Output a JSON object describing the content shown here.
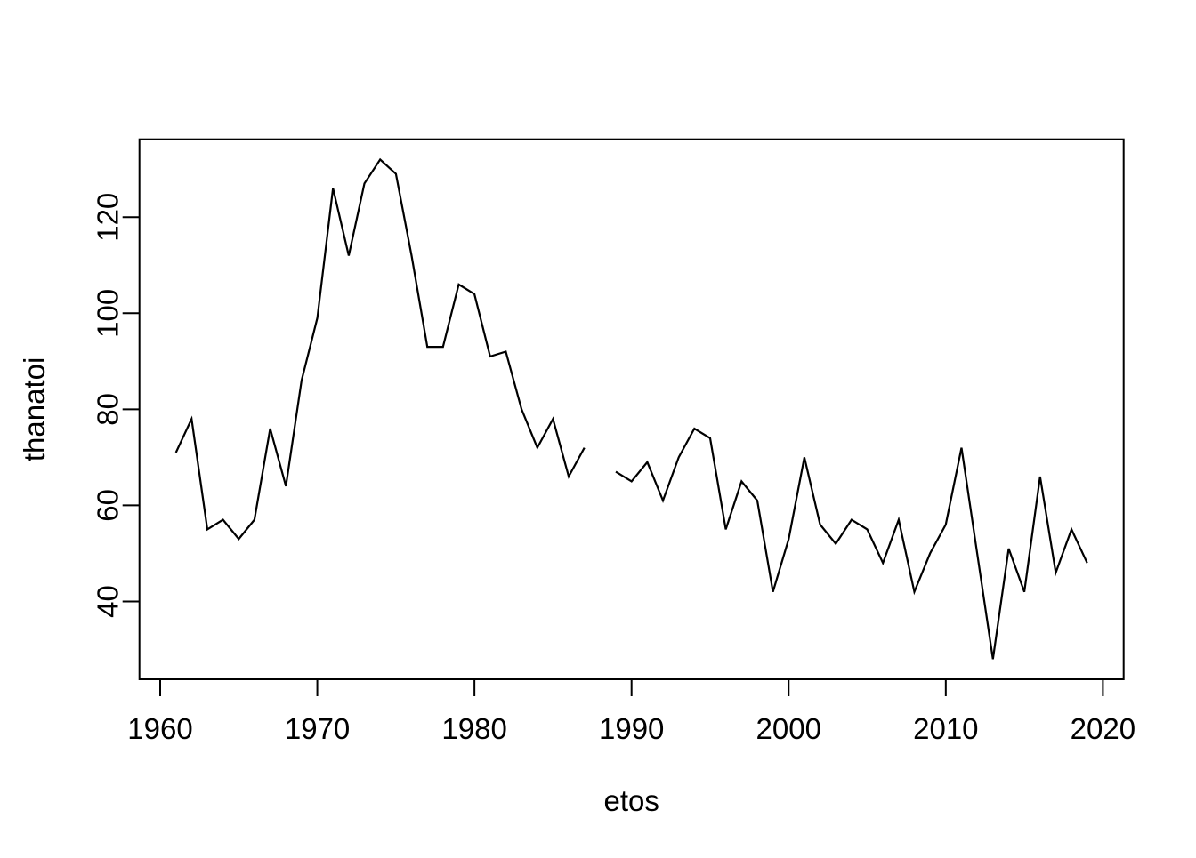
{
  "chart_data": {
    "type": "line",
    "title": "",
    "xlabel": "etos",
    "ylabel": "thanatoi",
    "grid": false,
    "legend": null,
    "background_color": "#ffffff",
    "line_color": "#000000",
    "axis_color": "#000000",
    "xlim": [
      1958.68,
      2021.32
    ],
    "ylim": [
      23.8,
      136.2
    ],
    "xticks": [
      1960,
      1970,
      1980,
      1990,
      2000,
      2010,
      2020
    ],
    "yticks": [
      40,
      60,
      80,
      100,
      120
    ],
    "series": [
      {
        "name": "thanatoi",
        "x": [
          1961,
          1962,
          1963,
          1964,
          1965,
          1966,
          1967,
          1968,
          1969,
          1970,
          1971,
          1972,
          1973,
          1974,
          1975,
          1976,
          1977,
          1978,
          1979,
          1980,
          1981,
          1982,
          1983,
          1984,
          1985,
          1986,
          1987,
          1988,
          1989,
          1990,
          1991,
          1992,
          1993,
          1994,
          1995,
          1996,
          1997,
          1998,
          1999,
          2000,
          2001,
          2002,
          2003,
          2004,
          2005,
          2006,
          2007,
          2008,
          2009,
          2010,
          2011,
          2012,
          2013,
          2014,
          2015,
          2016,
          2017,
          2018,
          2019
        ],
        "y": [
          71,
          78,
          55,
          57,
          53,
          57,
          76,
          64,
          86,
          99,
          126,
          112,
          127,
          132,
          129,
          112,
          93,
          93,
          106,
          104,
          91,
          92,
          80,
          72,
          78,
          66,
          72,
          null,
          67,
          65,
          69,
          61,
          70,
          76,
          74,
          55,
          65,
          61,
          42,
          53,
          70,
          56,
          52,
          57,
          55,
          48,
          57,
          42,
          50,
          56,
          72,
          50,
          28,
          51,
          42,
          66,
          46,
          55,
          48
        ]
      }
    ],
    "notes": "gap in line at 1988 (missing value)"
  }
}
